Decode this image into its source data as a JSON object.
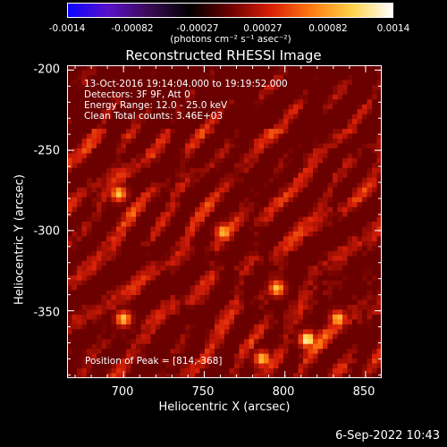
{
  "colorbar": {
    "ticks": [
      "-0.0014",
      "-0.00082",
      "-0.00027",
      "0.00027",
      "0.00082",
      "0.0014"
    ],
    "unit": "(photons cm⁻² s⁻¹ asec⁻²)",
    "stops": [
      "#0a05ff",
      "#5a10c8",
      "#3a0a55",
      "#000000",
      "#6b0000",
      "#d81f08",
      "#ff7a10",
      "#ffd24a",
      "#ffffff"
    ]
  },
  "footer_date": "6-Sep-2022 10:43",
  "chart_data": {
    "type": "heatmap",
    "title": "Reconstructed RHESSI Image",
    "xlabel": "Heliocentric X (arcsec)",
    "ylabel": "Heliocentric Y (arcsec)",
    "xlim": [
      665,
      860
    ],
    "ylim": [
      -392,
      -197
    ],
    "xticks": [
      "700",
      "750",
      "800",
      "850"
    ],
    "yticks": [
      "-200",
      "-250",
      "-300",
      "-350"
    ],
    "annotations": [
      "13-Oct-2016 19:14:04.000 to 19:19:52.000",
      "Detectors: 3F 9F, Att 0",
      "Energy Range: 12.0 - 25.0 keV",
      "Clean     Total counts: 3.46E+03"
    ],
    "peak_label": "Position of Peak = [814,-368]",
    "peak": [
      814,
      -368
    ],
    "bright_spots": [
      [
        814,
        -368
      ],
      [
        762,
        -301
      ],
      [
        697,
        -277
      ],
      [
        833,
        -355
      ],
      [
        795,
        -336
      ],
      [
        786,
        -380
      ],
      [
        700,
        -355
      ]
    ]
  }
}
